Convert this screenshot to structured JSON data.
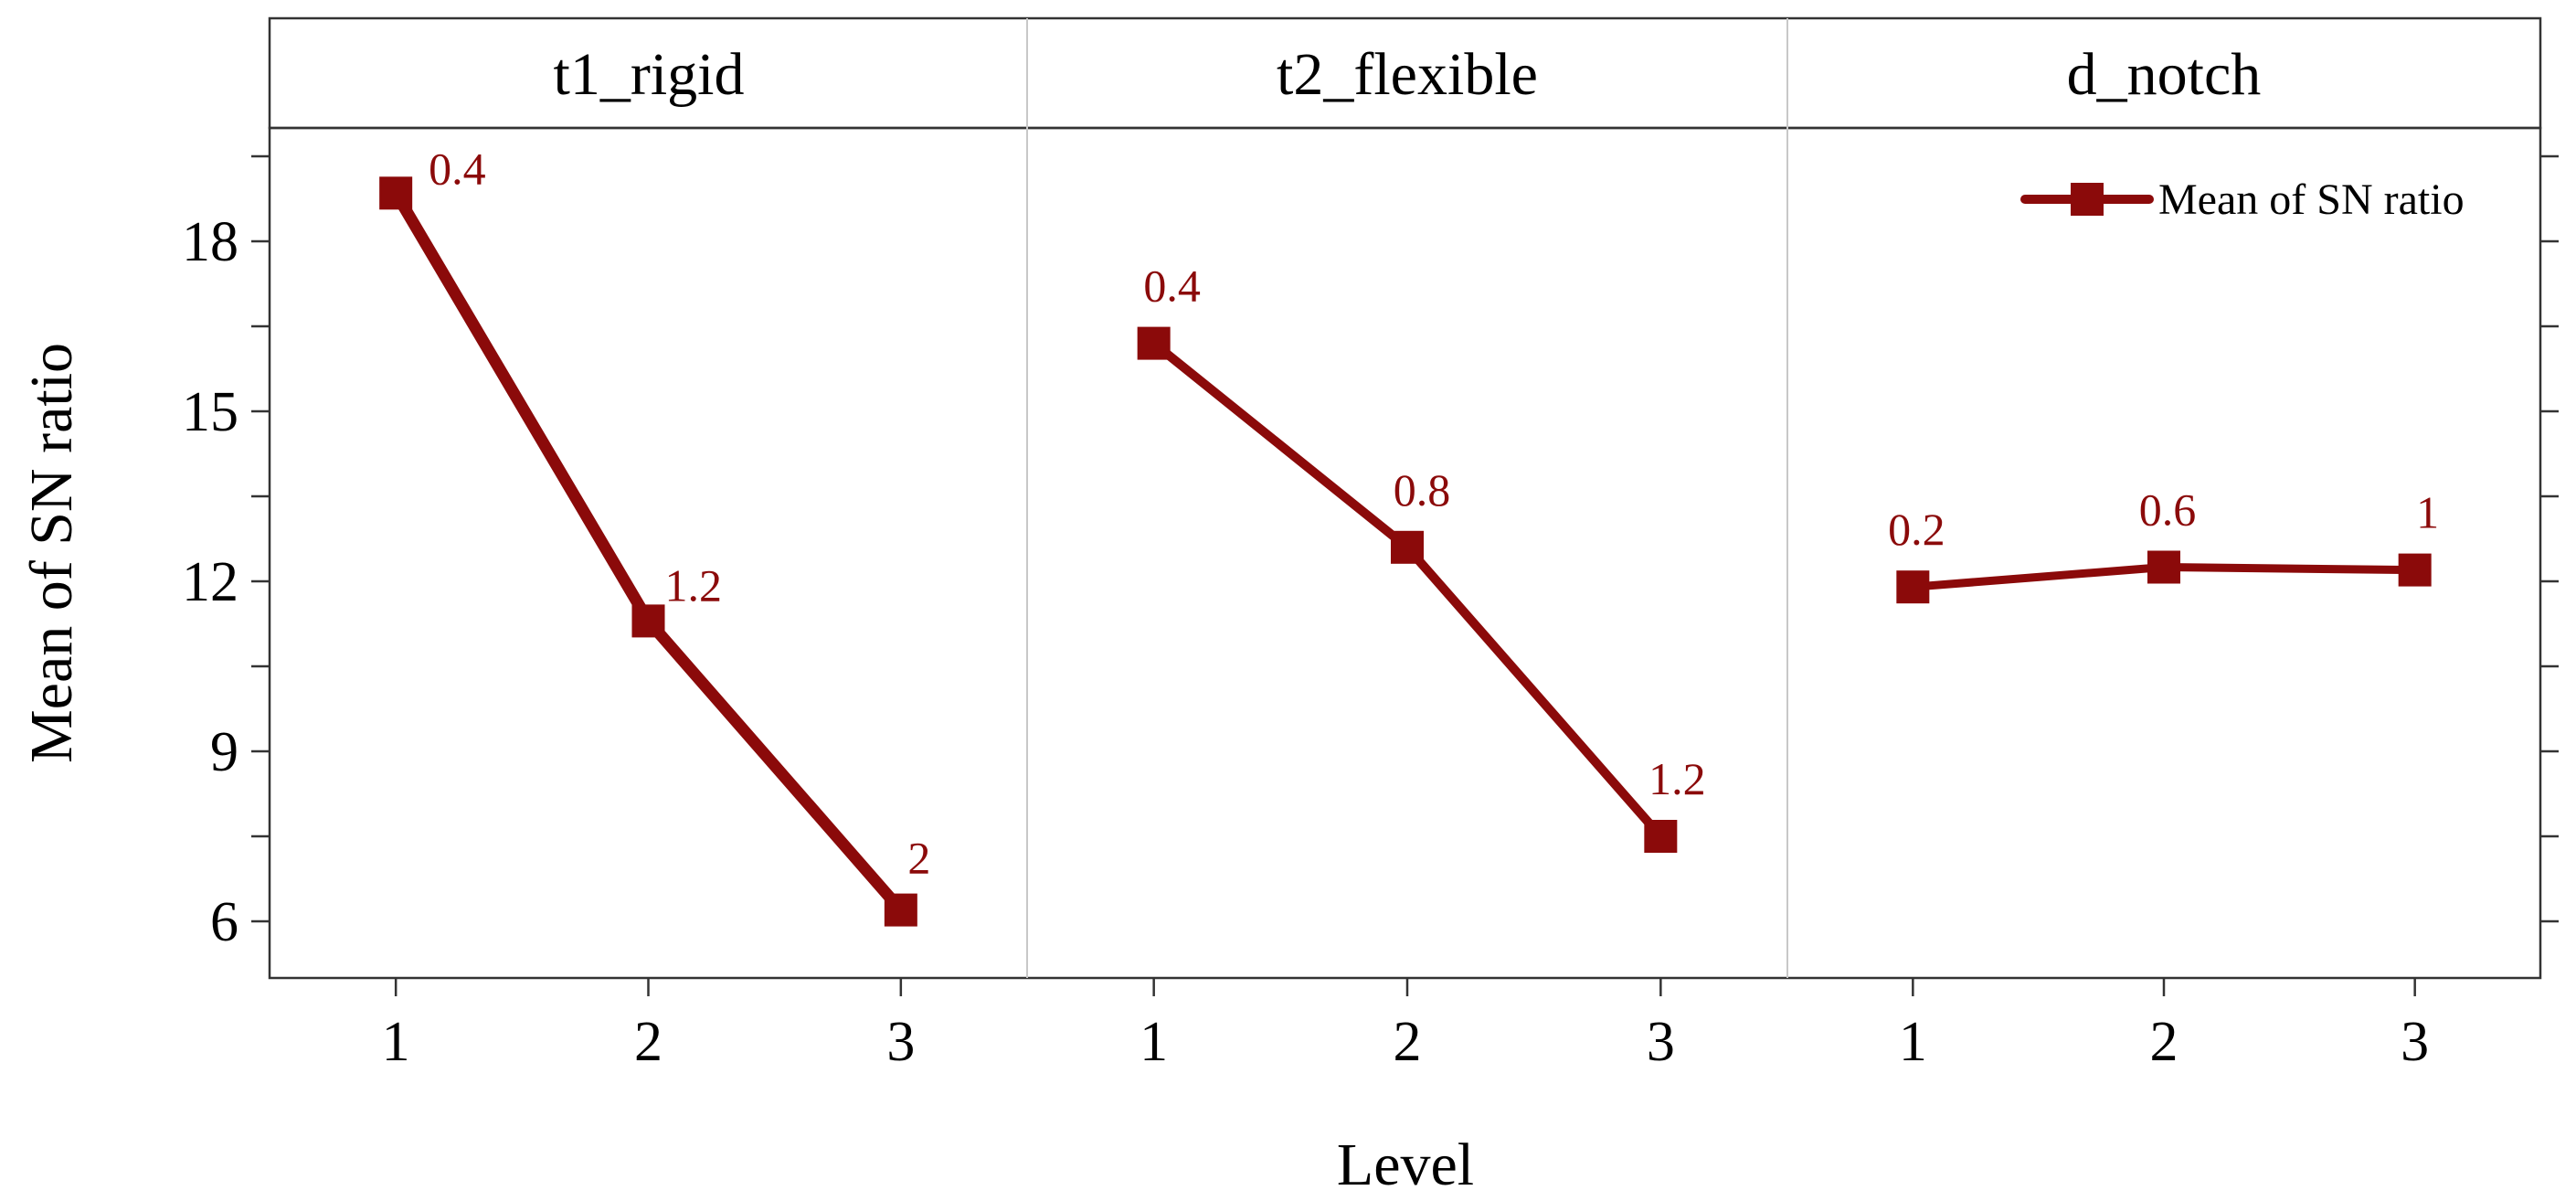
{
  "chart_data": {
    "type": "line",
    "ylabel": "Mean of SN ratio",
    "xlabel": "Level",
    "ylim": [
      5,
      20
    ],
    "yticks": [
      6,
      9,
      12,
      15,
      18
    ],
    "x": [
      1,
      2,
      3
    ],
    "grid": false,
    "legend_position": "top-right",
    "series_color": "#8b0a0a",
    "series": [
      {
        "name": "Mean of SN ratio",
        "panel": "t1_rigid",
        "values": [
          18.85,
          11.3,
          6.2
        ],
        "labels": [
          "0.4",
          "1.2",
          "2"
        ]
      },
      {
        "name": "Mean of SN ratio",
        "panel": "t2_flexible",
        "values": [
          16.2,
          12.6,
          7.5
        ],
        "labels": [
          "0.4",
          "0.8",
          "1.2"
        ]
      },
      {
        "name": "Mean of SN ratio",
        "panel": "d_notch",
        "values": [
          11.9,
          12.25,
          12.2
        ],
        "labels": [
          "0.2",
          "0.6",
          "1"
        ]
      }
    ],
    "legend": [
      "Mean of SN ratio"
    ]
  }
}
